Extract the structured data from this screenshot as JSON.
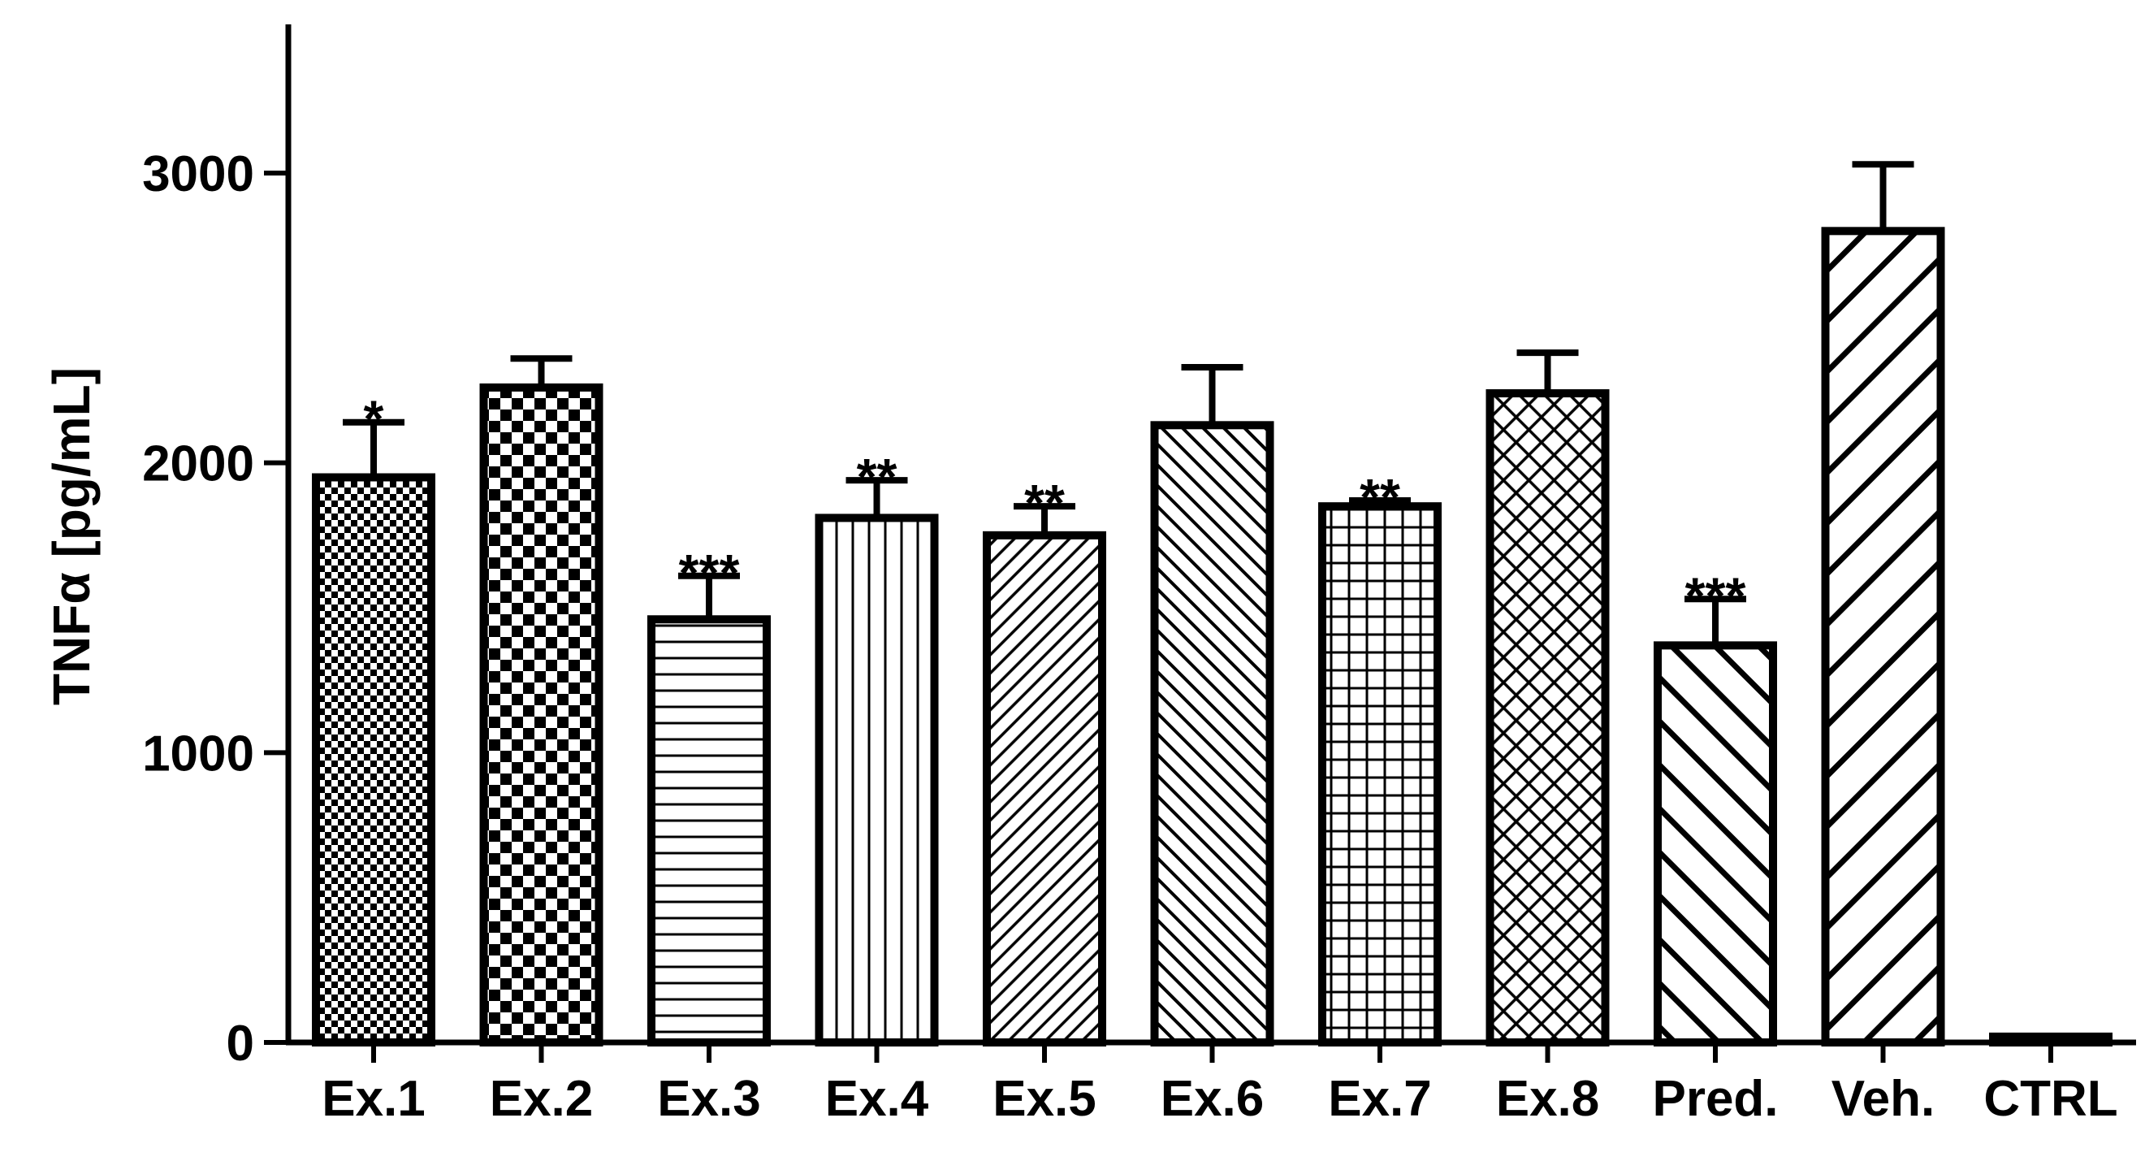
{
  "chart_data": {
    "type": "bar",
    "ylabel": "TNFα [pg/mL]",
    "xlabel": "",
    "title": "",
    "ylim": [
      0,
      3500
    ],
    "yticks": [
      0,
      1000,
      2000,
      3000
    ],
    "ytick_labels": [
      "0",
      "1000",
      "2000",
      "3000"
    ],
    "categories": [
      "Ex.1",
      "Ex.2",
      "Ex.3",
      "Ex.4",
      "Ex.5",
      "Ex.6",
      "Ex.7",
      "Ex.8",
      "Pred.",
      "Veh.",
      "CTRL"
    ],
    "values": [
      1950,
      2260,
      1460,
      1810,
      1750,
      2130,
      1850,
      2240,
      1370,
      2800,
      20
    ],
    "errors": [
      190,
      100,
      150,
      130,
      100,
      200,
      20,
      140,
      160,
      230,
      0
    ],
    "significance": [
      "*",
      "",
      "***",
      "**",
      "**",
      "",
      "**",
      "",
      "***",
      "",
      ""
    ],
    "patterns": [
      "small-checker",
      "large-checker",
      "horizontal-lines",
      "vertical-lines",
      "diagonal-fine",
      "diagonal-back",
      "grid",
      "crosshatch-diagonal",
      "diagonal-back-wide",
      "diagonal-wide",
      "solid"
    ],
    "colors": {
      "bar_stroke": "#000000",
      "bar_fill": "#ffffff",
      "axis": "#000000"
    },
    "grid": false,
    "legend": "none"
  }
}
